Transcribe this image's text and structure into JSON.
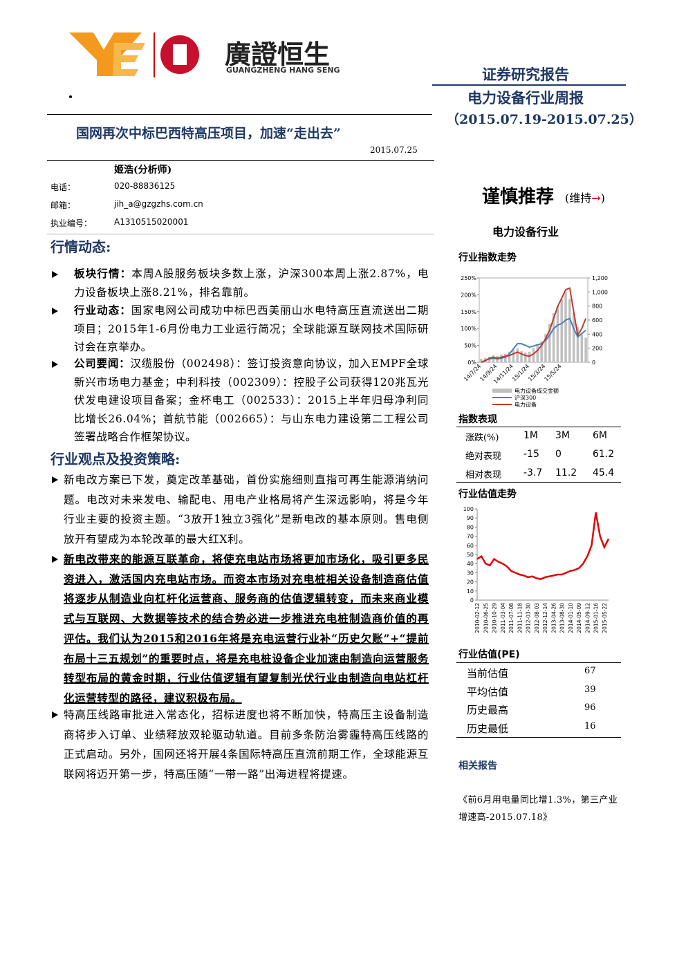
{
  "header": {
    "logo_text": "廣證恒生",
    "logo_en": "GUANGZHENG HANG SENG",
    "report_type": "证券研究报告",
    "report_name": "电力设备行业周报",
    "period": "（2015.07.19-2015.07.25）"
  },
  "title": "国网再次中标巴西特高压项目，加速“走出去”",
  "date": "2015.07.25",
  "analyst": {
    "name": "姬浩(分析师)",
    "rows": [
      [
        "电话：",
        "020-88836125"
      ],
      [
        "邮箱：",
        "jih_a@gzgzhs.com.cn"
      ],
      [
        "执业编号：",
        "A1310515020001"
      ]
    ]
  },
  "sections": [
    {
      "heading": "行情动态:",
      "items": [
        {
          "lead": "板块行情：",
          "text": "本周A股服务板块多数上涨，沪深300本周上涨2.87%，电力设备板块上涨8.21%，排名靠前。"
        },
        {
          "lead": "行业动态：",
          "text": "国家电网公司成功中标巴西美丽山水电特高压直流送出二期项目；2015年1-6月份电力工业运行简况；全球能源互联网技术国际研讨会在京举办。"
        },
        {
          "lead": "公司要闻：",
          "text": "汉缆股份（002498）：签订投资意向协议，加入EMPF全球新兴市场电力基金；中利科技（002309）：控股子公司获得120兆瓦光伏发电建设项目备案；金杯电工（002533）：2015上半年归母净利同比增长26.04%；首航节能（002665）：与山东电力建设第二工程公司签署战略合作框架协议。"
        }
      ]
    },
    {
      "heading": "行业观点及投资策略:",
      "items": [
        {
          "text": "新电改方案已下发，奠定改革基础，首份实施细则直指可再生能源消纳问题。电改对未来发电、输配电、用电产业格局将产生深远影响，将是今年行业主要的投资主题。“3放开1独立3强化”是新电改的基本原则。售电侧放开有望成为本轮改革的最大红X利。"
        },
        {
          "text": "新电改带来的能源互联革命，将使充电站市场将更加市场化，吸引更多民资进入，激活国内充电站市场。而资本市场对充电桩相关设备制造商估值将逐步从制造业向杠杆化运营商、服务商的估值逻辑转变，而未来商业模式与互联网、大数据等技术的结合势必进一步推进充电桩制造商价值的再评估。我们认为2015和2016年将是充电运营行业补“历史欠账”+“提前布局十三五规划”的重要时点，将是充电桩设备企业加速由制造向运营服务转型布局的黄金时期，行业估值逻辑有望复制光伏行业由制造向电站杠杆化运营转型的路径，建议积极布局。",
          "bold": true
        },
        {
          "text": "特高压线路审批进入常态化，招标进度也将不断加快，特高压主设备制造商将步入订单、业绩释放双轮驱动轨道。目前多条防治雾霾特高压线路的正式启动。另外，国网还将开展4条国际特高压直流前期工作，全球能源互联网将迈开第一步，特高压随“一带一路”出海进程将提速。"
        }
      ]
    }
  ],
  "sidebar": {
    "rating": "谨慎推荐",
    "rating_note": "(维持",
    "rating_arrow": "→",
    "rating_close": ")",
    "industry": "电力设备行业",
    "index_chart_title": "行业指数走势",
    "perf_title": "指数表现",
    "perf_table": [
      [
        "涨跌(%)",
        "1M",
        "3M",
        "6M"
      ],
      [
        "绝对表现",
        -15,
        0.0,
        61.2
      ],
      [
        "相对表现",
        -3.7,
        11.2,
        45.4
      ]
    ],
    "pe_chart_title": "行业估值走势",
    "pe_title": "行业估值(PE)",
    "pe_table": [
      [
        "当前估值",
        67
      ],
      [
        "平均估值",
        39
      ],
      [
        "历史最高",
        96
      ],
      [
        "历史最低",
        16
      ]
    ],
    "related_title": "相关报告",
    "related": "《前6月用电量同比增1.3%，第三产业增速高-2015.07.18》"
  },
  "chart_data": [
    {
      "type": "combo",
      "categories": [
        "14/7/24",
        null,
        null,
        null,
        "14/9/24",
        null,
        null,
        null,
        "14/11/24",
        null,
        null,
        null,
        "15/1/24",
        null,
        null,
        null,
        "15/3/24",
        null,
        null,
        null,
        "15/5/24",
        null,
        null,
        null,
        null,
        null,
        null
      ],
      "series": [
        {
          "name": "电力设备成交金额",
          "color": "#bfbfbf",
          "kind": "bar",
          "axis": "y2",
          "values": [
            50,
            60,
            80,
            100,
            90,
            110,
            120,
            150,
            180,
            200,
            160,
            140,
            150,
            200,
            250,
            300,
            400,
            550,
            700,
            800,
            900,
            1000,
            900,
            700,
            500,
            400,
            350
          ]
        },
        {
          "name": "沪深300",
          "color": "#4a7ebb",
          "kind": "line",
          "values": [
            0,
            5,
            10,
            12,
            10,
            12,
            15,
            25,
            40,
            55,
            55,
            50,
            45,
            48,
            52,
            55,
            65,
            80,
            100,
            110,
            115,
            125,
            130,
            100,
            75,
            85,
            95
          ]
        },
        {
          "name": "电力设备",
          "color": "#c0392b",
          "kind": "line",
          "values": [
            0,
            5,
            12,
            15,
            12,
            15,
            18,
            20,
            25,
            30,
            25,
            20,
            18,
            25,
            35,
            50,
            70,
            95,
            130,
            165,
            190,
            215,
            220,
            150,
            80,
            100,
            130
          ]
        }
      ],
      "ylim": [
        0,
        250
      ],
      "yticks": [
        {
          "value": 0,
          "label": "0%"
        },
        {
          "value": 50,
          "label": "50%"
        },
        {
          "value": 100,
          "label": "100%"
        },
        {
          "value": 150,
          "label": "150%"
        },
        {
          "value": 200,
          "label": "200%"
        },
        {
          "value": 250,
          "label": "250%"
        }
      ],
      "y2lim": [
        0,
        1200
      ],
      "y2ticks": [
        0,
        200,
        400,
        600,
        800,
        {
          "value": 1000,
          "label": "1,000"
        },
        {
          "value": 1200,
          "label": "1,200"
        }
      ]
    },
    {
      "type": "line",
      "categories": [
        "2010-02-12",
        null,
        "2010-06-25",
        null,
        "2010-10-29",
        null,
        "2011-03-04",
        null,
        "2011-07-08",
        null,
        "2011-11-18",
        null,
        "2012-03-30",
        null,
        "2012-08-03",
        null,
        "2012-12-14",
        null,
        "2013-04-26",
        null,
        "2013-08-30",
        null,
        "2014-01-10",
        null,
        "2014-05-09",
        null,
        "2014-09-12",
        null,
        "2015-01-16",
        null,
        "2015-05-22",
        null
      ],
      "values": [
        45,
        48,
        40,
        38,
        45,
        42,
        40,
        37,
        32,
        30,
        28,
        27,
        25,
        26,
        24,
        23,
        25,
        26,
        27,
        28,
        28,
        30,
        32,
        33,
        35,
        40,
        48,
        60,
        96,
        70,
        58,
        67
      ],
      "color": "#e00000",
      "ylim": [
        0,
        100
      ],
      "yticks": [
        0,
        10,
        20,
        30,
        40,
        50,
        60,
        70,
        80,
        90,
        100
      ]
    }
  ]
}
